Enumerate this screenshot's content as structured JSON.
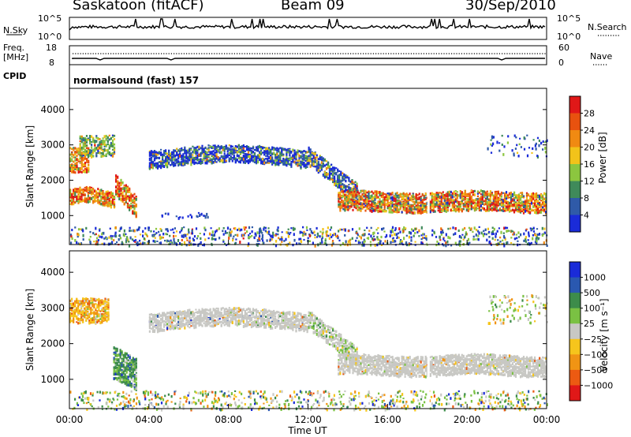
{
  "header": {
    "station": "Saskatoon (fitACF)",
    "beam": "Beam 09",
    "date": "30/Sep/2010"
  },
  "top_panels": {
    "nsky_label": "N.Sky",
    "nsky_ticks": [
      "10^5",
      "10^0"
    ],
    "nsearch_label": "N.Search",
    "nsearch_ticks": [
      "10^5",
      "10^0"
    ],
    "freq_label": "Freq.",
    "freq_unit": "[MHz]",
    "freq_ticks": [
      "18",
      "8"
    ],
    "nave_label": "Nave",
    "nave_ticks": [
      "60",
      "0"
    ],
    "cpid_label": "CPID",
    "cpid_value": "normalsound (fast) 157"
  },
  "colors": {
    "power_scale": [
      "#1a2bd8",
      "#2f5aa8",
      "#3f8a5a",
      "#8cc63f",
      "#f2c31a",
      "#f08a12",
      "#e8520f",
      "#e01818"
    ],
    "velocity_scale": [
      "#1a2bd8",
      "#2a58b0",
      "#3d8c4a",
      "#7ac143",
      "#c8c8c4",
      "#f6c51c",
      "#f09414",
      "#ec5a12",
      "#e01818"
    ]
  },
  "chart_data": [
    {
      "type": "heatmap",
      "title": "",
      "xlabel": "",
      "ylabel": "Slant Range [km]",
      "x_ticks": [
        "00:00",
        "04:00",
        "08:00",
        "12:00",
        "16:00",
        "20:00",
        "00:00"
      ],
      "y_ticks": [
        "1000",
        "2000",
        "3000",
        "4000"
      ],
      "xlim_hours": [
        0,
        24
      ],
      "ylim_km": [
        180,
        4600
      ],
      "colorbar": {
        "label": "Power [dB]",
        "ticks": [
          "4",
          "8",
          "12",
          "16",
          "20",
          "24",
          "28"
        ]
      },
      "bands": [
        {
          "t": [
            0.0,
            2.7
          ],
          "range_km": [
            1100,
            1950
          ],
          "value": "high"
        },
        {
          "t": [
            0.0,
            1.0
          ],
          "range_km": [
            2200,
            3100
          ],
          "value": "high"
        },
        {
          "t": [
            0.5,
            2.3
          ],
          "range_km": [
            2600,
            3400
          ],
          "value": "medium"
        },
        {
          "t": [
            2.3,
            3.4
          ],
          "range_km": [
            1000,
            2100
          ],
          "value": "high"
        },
        {
          "t": [
            4.0,
            14.0
          ],
          "range_km": [
            2300,
            2950
          ],
          "value": "low-medium"
        },
        {
          "t": [
            13.0,
            24.0
          ],
          "range_km": [
            1100,
            1800
          ],
          "value": "high"
        },
        {
          "t": [
            0.0,
            24.0
          ],
          "range_km": [
            180,
            700
          ],
          "value": "low-mixed"
        }
      ]
    },
    {
      "type": "heatmap",
      "title": "",
      "xlabel": "Time UT",
      "ylabel": "Slant Range [km]",
      "x_ticks": [
        "00:00",
        "04:00",
        "08:00",
        "12:00",
        "16:00",
        "20:00",
        "00:00"
      ],
      "y_ticks": [
        "1000",
        "2000",
        "3000",
        "4000"
      ],
      "xlim_hours": [
        0,
        24
      ],
      "ylim_km": [
        180,
        4600
      ],
      "colorbar": {
        "label": "Velocity [m s⁻¹]",
        "ticks": [
          "1000",
          "500",
          "100",
          "25",
          "−25",
          "−100",
          "−500",
          "−1000"
        ]
      },
      "bands": [
        {
          "t": [
            0.0,
            2.0
          ],
          "range_km": [
            2600,
            3400
          ],
          "value": "-100 to -500"
        },
        {
          "t": [
            2.2,
            3.4
          ],
          "range_km": [
            900,
            2100
          ],
          "value": "100 to 500"
        },
        {
          "t": [
            4.0,
            14.0
          ],
          "range_km": [
            2300,
            2950
          ],
          "value": "-25 to 25"
        },
        {
          "t": [
            13.0,
            24.0
          ],
          "range_km": [
            1100,
            1800
          ],
          "value": "-25 to 25"
        },
        {
          "t": [
            0.0,
            24.0
          ],
          "range_km": [
            180,
            700
          ],
          "value": "mixed"
        }
      ]
    }
  ]
}
